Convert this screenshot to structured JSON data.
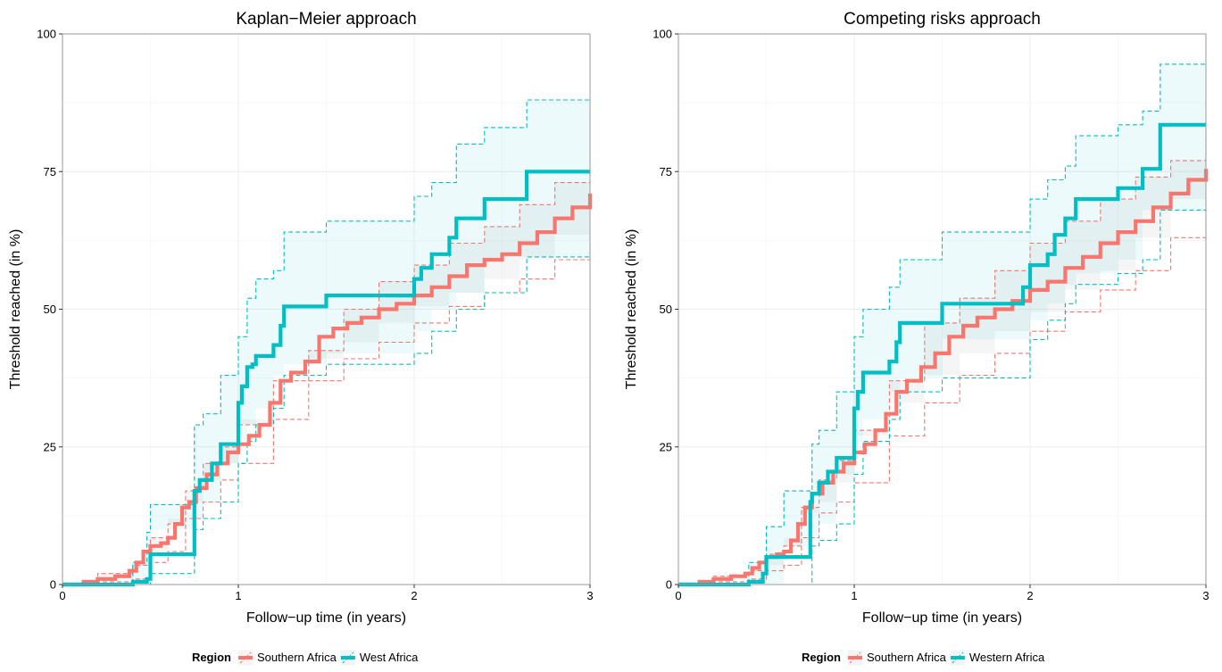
{
  "chart_data": [
    {
      "type": "line",
      "subtype": "step",
      "title": "Kaplan−Meier approach",
      "xlabel": "Follow−up time (in years)",
      "ylabel": "Threshold reached (in %)",
      "xlim": [
        0,
        3
      ],
      "ylim": [
        0,
        100
      ],
      "xticks": [
        "0",
        "1",
        "2",
        "3"
      ],
      "yticks": [
        "0",
        "25",
        "50",
        "75",
        "100"
      ],
      "grid": true,
      "legend": {
        "title": "Region",
        "position": "bottom"
      },
      "series": [
        {
          "name": "Southern Africa",
          "color": "#f8766d",
          "x": [
            0,
            0.12,
            0.2,
            0.3,
            0.38,
            0.42,
            0.46,
            0.5,
            0.56,
            0.6,
            0.64,
            0.68,
            0.72,
            0.76,
            0.82,
            0.88,
            0.94,
            1.0,
            1.06,
            1.12,
            1.18,
            1.24,
            1.3,
            1.38,
            1.46,
            1.54,
            1.62,
            1.7,
            1.8,
            1.9,
            2.0,
            2.1,
            2.2,
            2.3,
            2.4,
            2.5,
            2.6,
            2.7,
            2.8,
            2.9,
            3.0
          ],
          "y": [
            0,
            0.5,
            1,
            1.5,
            2.5,
            4,
            6,
            7,
            7.5,
            8.5,
            11,
            14,
            15,
            17.5,
            20,
            22,
            24,
            25.5,
            27,
            29,
            33,
            37,
            38.5,
            40.5,
            45,
            46.5,
            47.5,
            48.5,
            50,
            51,
            52.5,
            54,
            56,
            58,
            59,
            60,
            62,
            64,
            66.5,
            68.5,
            71
          ]
        },
        {
          "name": "West Africa",
          "color": "#00bfc4",
          "x": [
            0,
            0.4,
            0.48,
            0.5,
            0.75,
            0.78,
            0.85,
            0.9,
            1.0,
            1.02,
            1.05,
            1.08,
            1.1,
            1.2,
            1.24,
            1.26,
            1.5,
            2.0,
            2.04,
            2.1,
            2.2,
            2.24,
            2.4,
            2.5,
            2.64,
            3.0
          ],
          "y": [
            0,
            0.5,
            1,
            5.5,
            17,
            19,
            22,
            25.5,
            33,
            36,
            39.5,
            40,
            41.5,
            43.5,
            47,
            50.5,
            52.5,
            55.5,
            57.5,
            60,
            63,
            66.5,
            70,
            70,
            75,
            75
          ]
        }
      ],
      "bands": [
        {
          "series": "Southern Africa",
          "x": [
            0,
            0.2,
            0.4,
            0.5,
            0.6,
            0.7,
            0.8,
            0.9,
            1.0,
            1.2,
            1.4,
            1.6,
            1.8,
            2.0,
            2.2,
            2.4,
            2.6,
            2.8,
            3.0
          ],
          "lower": [
            0,
            0.5,
            1,
            4,
            6,
            12,
            15,
            19,
            22,
            30,
            37,
            41,
            44,
            47.5,
            50.5,
            53,
            55.5,
            59,
            63.5
          ],
          "upper": [
            0,
            2,
            3.5,
            8.5,
            11,
            17,
            22,
            25,
            29,
            37,
            42.5,
            50,
            55,
            58,
            62,
            65,
            69,
            73,
            78
          ]
        },
        {
          "series": "West Africa",
          "x": [
            0,
            0.4,
            0.48,
            0.5,
            0.75,
            0.8,
            0.9,
            1.0,
            1.05,
            1.1,
            1.2,
            1.26,
            1.5,
            2.0,
            2.1,
            2.24,
            2.4,
            2.64,
            3.0
          ],
          "lower": [
            0,
            0,
            0,
            2,
            10,
            12,
            15,
            22,
            26,
            29,
            32,
            38,
            40,
            42,
            46,
            50,
            53,
            59.5,
            59.5
          ],
          "upper": [
            0,
            4,
            9.5,
            14.5,
            29,
            31,
            38,
            45,
            52,
            55.5,
            57,
            64,
            66,
            70.5,
            73,
            80,
            83,
            88,
            88
          ]
        }
      ]
    },
    {
      "type": "line",
      "subtype": "step",
      "title": "Competing risks approach",
      "xlabel": "Follow−up time (in years)",
      "ylabel": "Threshold reached (in %)",
      "xlim": [
        0,
        3
      ],
      "ylim": [
        0,
        100
      ],
      "xticks": [
        "0",
        "1",
        "2",
        "3"
      ],
      "yticks": [
        "0",
        "25",
        "50",
        "75",
        "100"
      ],
      "grid": true,
      "legend": {
        "title": "Region",
        "position": "bottom"
      },
      "series": [
        {
          "name": "Southern Africa",
          "color": "#f8766d",
          "x": [
            0,
            0.12,
            0.2,
            0.3,
            0.38,
            0.42,
            0.46,
            0.5,
            0.56,
            0.6,
            0.64,
            0.68,
            0.72,
            0.76,
            0.82,
            0.88,
            0.94,
            1.0,
            1.06,
            1.12,
            1.18,
            1.24,
            1.3,
            1.38,
            1.46,
            1.54,
            1.62,
            1.7,
            1.8,
            1.9,
            2.0,
            2.1,
            2.2,
            2.3,
            2.4,
            2.5,
            2.6,
            2.7,
            2.8,
            2.9,
            3.0
          ],
          "y": [
            0,
            0.5,
            1,
            1.5,
            2,
            3,
            4,
            5,
            5.5,
            6,
            8,
            11,
            14,
            16.5,
            18.5,
            20.5,
            22,
            24,
            25.5,
            28,
            31,
            35,
            37,
            39.5,
            42,
            45,
            47,
            48.5,
            50,
            51.5,
            53.5,
            55,
            57.5,
            59.5,
            62,
            64,
            66,
            68.5,
            71,
            73.5,
            75.5
          ]
        },
        {
          "name": "Western Africa",
          "color": "#00bfc4",
          "x": [
            0,
            0.4,
            0.48,
            0.5,
            0.75,
            0.76,
            0.8,
            0.85,
            0.9,
            1.0,
            1.02,
            1.05,
            1.2,
            1.24,
            1.26,
            1.5,
            1.96,
            2.0,
            2.1,
            2.14,
            2.2,
            2.26,
            2.5,
            2.64,
            2.74,
            3.0
          ],
          "y": [
            0,
            0.5,
            2,
            5,
            15,
            16.5,
            18.5,
            20.5,
            23,
            32,
            35,
            38.5,
            40.5,
            44,
            47.5,
            51,
            54,
            58,
            60,
            63.5,
            66.5,
            70,
            72,
            75.5,
            83.5,
            83.5
          ]
        }
      ],
      "bands": [
        {
          "series": "Southern Africa",
          "x": [
            0,
            0.2,
            0.4,
            0.5,
            0.6,
            0.7,
            0.8,
            0.9,
            1.0,
            1.2,
            1.4,
            1.6,
            1.8,
            2.0,
            2.2,
            2.4,
            2.6,
            2.8,
            3.0
          ],
          "lower": [
            0,
            0.5,
            1,
            2.5,
            3.5,
            8.5,
            13,
            15,
            18.5,
            27,
            33,
            38,
            42,
            46,
            49.5,
            53.5,
            57,
            63,
            70
          ],
          "upper": [
            0,
            1.5,
            2.5,
            5.5,
            7,
            14,
            19,
            22.5,
            28,
            37,
            47.5,
            52,
            57,
            62,
            66,
            70,
            74,
            77,
            82
          ]
        },
        {
          "series": "Western Africa",
          "x": [
            0,
            0.4,
            0.5,
            0.6,
            0.76,
            0.8,
            0.9,
            1.0,
            1.05,
            1.2,
            1.26,
            1.5,
            2.0,
            2.1,
            2.2,
            2.26,
            2.5,
            2.64,
            2.74,
            3.0
          ],
          "lower": [
            0,
            0,
            0,
            0,
            7,
            8,
            11,
            20,
            26,
            30,
            35,
            37.5,
            44.5,
            48,
            51,
            54.5,
            56.5,
            59,
            68,
            68
          ],
          "upper": [
            0,
            4,
            10.5,
            17,
            25.5,
            28,
            35,
            45,
            50,
            54,
            59,
            64,
            70,
            73.5,
            76,
            81.5,
            83.5,
            86,
            94.5,
            94.5
          ]
        }
      ]
    }
  ]
}
